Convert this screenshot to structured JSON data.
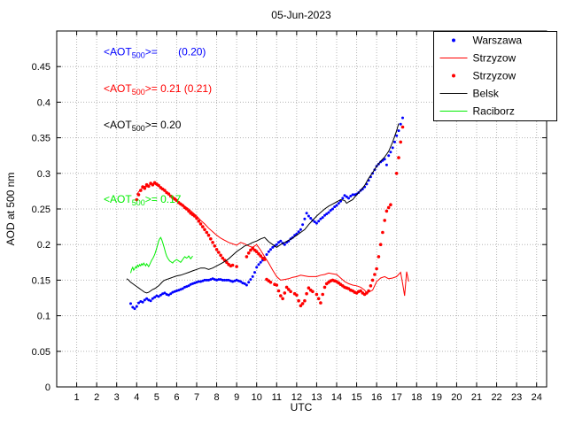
{
  "chart_data": {
    "type": "line+scatter",
    "title": "05-Jun-2023",
    "xlabel": "UTC",
    "ylabel": "AOD at 500 nm",
    "xlim": [
      0,
      24.5
    ],
    "ylim": [
      0,
      0.5
    ],
    "xticks": [
      1,
      2,
      3,
      4,
      5,
      6,
      7,
      8,
      9,
      10,
      11,
      12,
      13,
      14,
      15,
      16,
      17,
      18,
      19,
      20,
      21,
      22,
      23,
      24
    ],
    "yticks": [
      0,
      0.05,
      0.1,
      0.15,
      0.2,
      0.25,
      0.3,
      0.35,
      0.4,
      0.45
    ],
    "ytick_labels": [
      "0",
      "0.05",
      "0.1",
      "0.15",
      "0.2",
      "0.25",
      "0.3",
      "0.35",
      "0.4",
      "0.45"
    ],
    "grid": true,
    "legend": {
      "position": "top-right",
      "entries": [
        "Warszawa",
        "Strzyzow",
        "Strzyzow",
        "Belsk",
        "Raciborz"
      ]
    },
    "series": [
      {
        "name": "Warszawa",
        "style": "scatter",
        "color": "#0000ff",
        "marker_size": 1.5,
        "x": [
          3.7,
          3.8,
          3.9,
          4.0,
          4.1,
          4.2,
          4.3,
          4.4,
          4.5,
          4.6,
          4.7,
          4.8,
          4.9,
          5.0,
          5.1,
          5.2,
          5.3,
          5.4,
          5.5,
          5.6,
          5.7,
          5.8,
          5.9,
          6.0,
          6.1,
          6.2,
          6.3,
          6.4,
          6.5,
          6.6,
          6.7,
          6.8,
          6.9,
          7.0,
          7.1,
          7.2,
          7.3,
          7.4,
          7.5,
          7.6,
          7.7,
          7.8,
          7.9,
          8.0,
          8.1,
          8.2,
          8.3,
          8.4,
          8.5,
          8.6,
          8.7,
          8.8,
          8.9,
          9.0,
          9.1,
          9.2,
          9.3,
          9.4,
          9.5,
          9.6,
          9.7,
          9.8,
          9.9,
          10.0,
          10.1,
          10.2,
          10.3,
          10.4,
          10.5,
          10.6,
          10.7,
          10.8,
          10.9,
          11.0,
          11.1,
          11.2,
          11.3,
          11.4,
          11.5,
          11.6,
          11.7,
          11.8,
          11.9,
          12.0,
          12.1,
          12.2,
          12.3,
          12.4,
          12.5,
          12.6,
          12.7,
          12.8,
          12.9,
          13.0,
          13.1,
          13.2,
          13.3,
          13.4,
          13.5,
          13.6,
          13.7,
          13.8,
          13.9,
          14.0,
          14.1,
          14.2,
          14.3,
          14.4,
          14.5,
          14.6,
          14.7,
          14.8,
          14.9,
          15.0,
          15.1,
          15.2,
          15.3,
          15.4,
          15.5,
          15.6,
          15.7,
          15.8,
          15.9,
          16.0,
          16.1,
          16.2,
          16.3,
          16.4,
          16.5,
          16.6,
          16.7,
          16.8,
          16.9,
          17.0,
          17.1,
          17.2,
          17.3
        ],
        "y": [
          0.117,
          0.112,
          0.11,
          0.113,
          0.118,
          0.12,
          0.119,
          0.122,
          0.124,
          0.122,
          0.121,
          0.124,
          0.126,
          0.128,
          0.127,
          0.129,
          0.131,
          0.132,
          0.13,
          0.129,
          0.131,
          0.133,
          0.134,
          0.135,
          0.136,
          0.137,
          0.138,
          0.14,
          0.141,
          0.142,
          0.144,
          0.145,
          0.146,
          0.147,
          0.148,
          0.148,
          0.149,
          0.15,
          0.15,
          0.15,
          0.151,
          0.152,
          0.151,
          0.15,
          0.151,
          0.151,
          0.15,
          0.15,
          0.15,
          0.15,
          0.149,
          0.148,
          0.149,
          0.15,
          0.149,
          0.148,
          0.146,
          0.145,
          0.143,
          0.147,
          0.151,
          0.155,
          0.161,
          0.168,
          0.172,
          0.175,
          0.178,
          0.181,
          0.186,
          0.19,
          0.193,
          0.196,
          0.198,
          0.2,
          0.203,
          0.205,
          0.202,
          0.2,
          0.203,
          0.205,
          0.208,
          0.21,
          0.213,
          0.215,
          0.218,
          0.221,
          0.228,
          0.236,
          0.244,
          0.24,
          0.237,
          0.234,
          0.232,
          0.23,
          0.233,
          0.236,
          0.238,
          0.241,
          0.243,
          0.245,
          0.248,
          0.25,
          0.253,
          0.255,
          0.258,
          0.261,
          0.265,
          0.269,
          0.267,
          0.265,
          0.268,
          0.27,
          0.27,
          0.271,
          0.273,
          0.276,
          0.278,
          0.281,
          0.285,
          0.29,
          0.295,
          0.3,
          0.305,
          0.31,
          0.313,
          0.316,
          0.318,
          0.32,
          0.312,
          0.325,
          0.33,
          0.336,
          0.344,
          0.353,
          0.36,
          0.369,
          0.378
        ]
      },
      {
        "name": "Strzyzow",
        "style": "line",
        "color": "#ff0000",
        "x": [
          4.0,
          4.1,
          4.2,
          4.3,
          4.4,
          4.5,
          4.6,
          4.7,
          4.8,
          4.9,
          5.0,
          5.2,
          5.4,
          5.6,
          5.8,
          6.0,
          6.2,
          6.4,
          6.6,
          6.8,
          7.0,
          7.2,
          7.4,
          7.6,
          7.8,
          8.0,
          8.2,
          8.4,
          8.6,
          8.8,
          9.0,
          9.2,
          9.4,
          9.6,
          9.8,
          10.0,
          10.2,
          10.4,
          10.6,
          10.8,
          11.0,
          11.2,
          11.4,
          11.6,
          11.8,
          12.0,
          12.2,
          12.4,
          12.6,
          12.8,
          13.0,
          13.2,
          13.4,
          13.6,
          13.8,
          14.0,
          14.2,
          14.4,
          14.6,
          14.8,
          15.0,
          15.2,
          15.4,
          15.5,
          15.6,
          15.8,
          16.0,
          16.2,
          16.4,
          16.6,
          16.8,
          17.0,
          17.1,
          17.2,
          17.3,
          17.4,
          17.5,
          17.6
        ],
        "y": [
          0.27,
          0.274,
          0.277,
          0.28,
          0.282,
          0.281,
          0.283,
          0.285,
          0.284,
          0.285,
          0.283,
          0.28,
          0.276,
          0.271,
          0.266,
          0.262,
          0.258,
          0.254,
          0.25,
          0.245,
          0.24,
          0.234,
          0.229,
          0.223,
          0.218,
          0.213,
          0.209,
          0.206,
          0.203,
          0.201,
          0.199,
          0.203,
          0.201,
          0.198,
          0.196,
          0.2,
          0.192,
          0.183,
          0.174,
          0.164,
          0.155,
          0.15,
          0.151,
          0.152,
          0.154,
          0.155,
          0.157,
          0.156,
          0.155,
          0.155,
          0.155,
          0.157,
          0.158,
          0.16,
          0.159,
          0.158,
          0.153,
          0.148,
          0.145,
          0.143,
          0.142,
          0.14,
          0.136,
          0.132,
          0.133,
          0.136,
          0.148,
          0.153,
          0.155,
          0.152,
          0.153,
          0.155,
          0.158,
          0.161,
          0.145,
          0.128,
          0.162,
          0.148
        ]
      },
      {
        "name": "Strzyzow",
        "style": "scatter",
        "color": "#ff0000",
        "marker_size": 1.8,
        "x": [
          4.0,
          4.1,
          4.2,
          4.3,
          4.4,
          4.5,
          4.6,
          4.7,
          4.8,
          4.9,
          5.0,
          5.1,
          5.2,
          5.3,
          5.4,
          5.5,
          5.6,
          5.7,
          5.8,
          5.9,
          6.0,
          6.1,
          6.2,
          6.3,
          6.4,
          6.5,
          6.6,
          6.7,
          6.8,
          6.9,
          7.0,
          7.1,
          7.2,
          7.3,
          7.4,
          7.5,
          7.6,
          7.7,
          7.8,
          7.9,
          8.0,
          8.1,
          8.2,
          8.3,
          8.4,
          8.5,
          8.6,
          8.7,
          8.8,
          9.0,
          9.5,
          9.6,
          9.7,
          9.8,
          9.9,
          10.0,
          10.1,
          10.2,
          10.3,
          10.4,
          10.5,
          10.6,
          10.7,
          10.9,
          11.0,
          11.1,
          11.2,
          11.3,
          11.4,
          11.5,
          11.6,
          11.7,
          11.9,
          12.0,
          12.1,
          12.2,
          12.3,
          12.4,
          12.5,
          12.6,
          12.7,
          12.8,
          13.0,
          13.1,
          13.2,
          13.3,
          13.4,
          13.5,
          13.6,
          13.7,
          13.8,
          13.9,
          14.0,
          14.1,
          14.2,
          14.3,
          14.4,
          14.5,
          14.6,
          14.7,
          14.8,
          14.9,
          15.0,
          15.1,
          15.2,
          15.3,
          15.4,
          15.5,
          15.6,
          15.7,
          15.8,
          15.9,
          16.0,
          16.1,
          16.2,
          16.3,
          16.4,
          16.5,
          16.6,
          16.7,
          17.0,
          17.1,
          17.2,
          17.3
        ],
        "y": [
          0.263,
          0.27,
          0.276,
          0.281,
          0.279,
          0.284,
          0.282,
          0.286,
          0.284,
          0.287,
          0.285,
          0.283,
          0.28,
          0.278,
          0.276,
          0.273,
          0.271,
          0.268,
          0.266,
          0.264,
          0.262,
          0.259,
          0.257,
          0.255,
          0.252,
          0.25,
          0.247,
          0.244,
          0.242,
          0.24,
          0.237,
          0.233,
          0.229,
          0.225,
          0.221,
          0.217,
          0.213,
          0.208,
          0.203,
          0.198,
          0.193,
          0.189,
          0.185,
          0.181,
          0.178,
          0.175,
          0.172,
          0.17,
          0.171,
          0.169,
          0.183,
          0.188,
          0.192,
          0.195,
          0.192,
          0.19,
          0.187,
          0.184,
          0.181,
          0.179,
          0.151,
          0.149,
          0.147,
          0.144,
          0.143,
          0.135,
          0.128,
          0.124,
          0.132,
          0.14,
          0.137,
          0.134,
          0.131,
          0.129,
          0.121,
          0.114,
          0.117,
          0.121,
          0.131,
          0.139,
          0.136,
          0.134,
          0.13,
          0.124,
          0.118,
          0.13,
          0.14,
          0.145,
          0.147,
          0.149,
          0.15,
          0.149,
          0.148,
          0.146,
          0.144,
          0.142,
          0.14,
          0.139,
          0.138,
          0.136,
          0.135,
          0.133,
          0.132,
          0.134,
          0.135,
          0.132,
          0.13,
          0.132,
          0.135,
          0.142,
          0.15,
          0.158,
          0.166,
          0.183,
          0.2,
          0.217,
          0.234,
          0.247,
          0.252,
          0.256,
          0.3,
          0.322,
          0.344,
          0.365
        ]
      },
      {
        "name": "Belsk",
        "style": "line",
        "color": "#000000",
        "x": [
          3.5,
          3.6,
          3.7,
          3.8,
          3.9,
          4.0,
          4.1,
          4.2,
          4.3,
          4.4,
          4.5,
          4.6,
          4.7,
          4.8,
          4.9,
          5.0,
          5.1,
          5.2,
          5.3,
          5.4,
          5.5,
          5.6,
          5.7,
          5.8,
          5.9,
          6.0,
          6.2,
          6.4,
          6.6,
          6.8,
          7.0,
          7.2,
          7.4,
          7.6,
          7.8,
          8.0,
          8.2,
          8.4,
          8.6,
          8.8,
          9.0,
          9.2,
          9.4,
          9.6,
          9.8,
          10.0,
          10.2,
          10.4,
          10.5,
          10.6,
          10.8,
          11.0,
          11.1,
          11.2,
          11.4,
          11.6,
          11.8,
          12.0,
          12.2,
          12.4,
          12.6,
          12.8,
          13.0,
          13.2,
          13.4,
          13.6,
          13.8,
          14.0,
          14.2,
          14.4,
          14.5,
          14.6,
          14.8,
          15.0,
          15.2,
          15.4,
          15.6,
          15.8,
          16.0,
          16.2,
          16.4,
          16.6,
          16.8,
          17.0,
          17.1
        ],
        "y": [
          0.152,
          0.15,
          0.147,
          0.145,
          0.143,
          0.141,
          0.139,
          0.137,
          0.135,
          0.133,
          0.132,
          0.133,
          0.135,
          0.137,
          0.138,
          0.14,
          0.142,
          0.145,
          0.148,
          0.15,
          0.151,
          0.152,
          0.153,
          0.154,
          0.155,
          0.156,
          0.157,
          0.159,
          0.161,
          0.163,
          0.165,
          0.167,
          0.167,
          0.165,
          0.167,
          0.17,
          0.173,
          0.176,
          0.18,
          0.185,
          0.19,
          0.194,
          0.198,
          0.2,
          0.203,
          0.205,
          0.208,
          0.21,
          0.207,
          0.204,
          0.2,
          0.196,
          0.198,
          0.2,
          0.203,
          0.206,
          0.209,
          0.213,
          0.217,
          0.221,
          0.228,
          0.234,
          0.24,
          0.245,
          0.25,
          0.254,
          0.257,
          0.26,
          0.263,
          0.262,
          0.258,
          0.26,
          0.263,
          0.27,
          0.276,
          0.283,
          0.293,
          0.301,
          0.31,
          0.317,
          0.323,
          0.331,
          0.344,
          0.36,
          0.37
        ]
      },
      {
        "name": "Raciborz",
        "style": "line",
        "color": "#00ee00",
        "x": [
          3.7,
          3.75,
          3.8,
          3.85,
          3.9,
          3.95,
          4.0,
          4.05,
          4.1,
          4.15,
          4.2,
          4.25,
          4.3,
          4.35,
          4.4,
          4.45,
          4.5,
          4.55,
          4.6,
          4.65,
          4.7,
          4.75,
          4.8,
          4.85,
          4.9,
          4.95,
          5.0,
          5.05,
          5.1,
          5.15,
          5.2,
          5.25,
          5.3,
          5.35,
          5.4,
          5.45,
          5.5,
          5.55,
          5.6,
          5.65,
          5.7,
          5.75,
          5.8,
          5.85,
          5.9,
          5.95,
          6.0,
          6.05,
          6.1,
          6.15,
          6.2,
          6.25,
          6.3,
          6.35,
          6.4,
          6.45,
          6.5,
          6.55,
          6.6,
          6.65,
          6.7,
          6.75,
          6.8
        ],
        "y": [
          0.16,
          0.165,
          0.168,
          0.164,
          0.166,
          0.169,
          0.167,
          0.171,
          0.169,
          0.172,
          0.17,
          0.173,
          0.171,
          0.174,
          0.172,
          0.17,
          0.173,
          0.171,
          0.169,
          0.172,
          0.175,
          0.178,
          0.18,
          0.183,
          0.186,
          0.19,
          0.195,
          0.2,
          0.205,
          0.208,
          0.21,
          0.207,
          0.203,
          0.198,
          0.193,
          0.188,
          0.184,
          0.181,
          0.179,
          0.177,
          0.176,
          0.175,
          0.174,
          0.176,
          0.177,
          0.178,
          0.179,
          0.178,
          0.177,
          0.176,
          0.175,
          0.177,
          0.179,
          0.181,
          0.183,
          0.182,
          0.181,
          0.182,
          0.184,
          0.182,
          0.18,
          0.182,
          0.184
        ]
      }
    ],
    "annotations": [
      {
        "id": "warszawa-mean",
        "color": "#0000ff",
        "prefix": "<AOT",
        "sub": "500",
        "suffix": ">=       (0.20)",
        "x": 2.35,
        "y": 0.466
      },
      {
        "id": "strzyzow-mean",
        "color": "#ff0000",
        "prefix": "<AOT",
        "sub": "500",
        "suffix": ">= 0.21 (0.21)",
        "x": 2.35,
        "y": 0.414
      },
      {
        "id": "belsk-mean",
        "color": "#000000",
        "prefix": "<AOT",
        "sub": "500",
        "suffix": ">= 0.20",
        "x": 2.35,
        "y": 0.363
      },
      {
        "id": "raciborz-mean",
        "color": "#00ee00",
        "prefix": "<AOT",
        "sub": "500",
        "suffix": ">= 0.17",
        "x": 2.35,
        "y": 0.259
      }
    ]
  }
}
